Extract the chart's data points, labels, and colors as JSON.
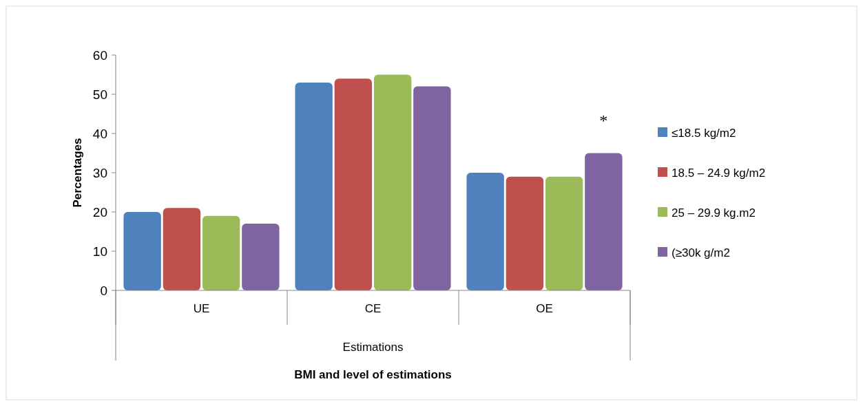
{
  "chart_data": {
    "type": "bar",
    "ylabel": "Percentages",
    "xlabel": "BMI and level of estimations",
    "categories": [
      "UE",
      "CE",
      "OE"
    ],
    "series": [
      {
        "name": "≤18.5 kg/m2",
        "color": "#4f81bd",
        "values": [
          20,
          53,
          30
        ]
      },
      {
        "name": "18.5 – 24.9 kg/m2",
        "color": "#c0504d",
        "values": [
          21,
          54,
          29
        ]
      },
      {
        "name": "25 – 29.9 kg.m2",
        "color": "#9bbb59",
        "values": [
          19,
          55,
          29
        ]
      },
      {
        "name": "(≥30k g/m2",
        "color": "#8064a2",
        "values": [
          17,
          52,
          35
        ]
      }
    ],
    "ylim": [
      0,
      60
    ],
    "yticks": [
      0,
      10,
      20,
      30,
      40,
      50,
      60
    ],
    "grid": false,
    "legend": "right",
    "annotations": [
      "Estimations",
      "*"
    ]
  }
}
